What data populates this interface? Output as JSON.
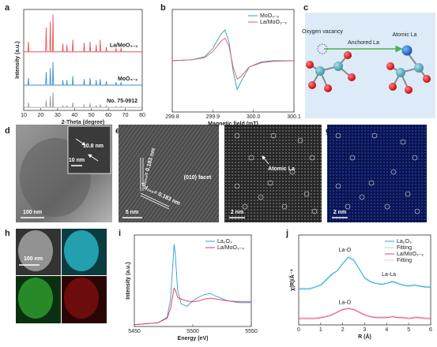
{
  "panel_labels": [
    "a",
    "b",
    "c",
    "d",
    "e",
    "f",
    "g",
    "h",
    "i",
    "j"
  ],
  "chart_data": [
    {
      "type": "line",
      "xlabel": "2-Theta (degree)",
      "ylabel": "Intensity (a.u.)",
      "xlim": [
        10,
        80
      ],
      "xticks": [
        10,
        20,
        30,
        40,
        50,
        60,
        70,
        80
      ],
      "ylim": [
        0,
        100
      ],
      "x": [
        10,
        12.5,
        12.8,
        13.1,
        22.9,
        23.3,
        23.6,
        25.4,
        25.7,
        26.0,
        27.0,
        27.3,
        27.6,
        32.8,
        33.1,
        33.4,
        35.2,
        35.5,
        35.8,
        38.7,
        39.0,
        39.3,
        45.4,
        45.7,
        46.0,
        48.9,
        49.2,
        49.5,
        52.5,
        52.8,
        53.1,
        54.9,
        55.2,
        55.5,
        58.5,
        58.8,
        59.1,
        64.2,
        64.5,
        64.8,
        67.2,
        67.5,
        67.8,
        80
      ],
      "series": [
        {
          "name": "La/MoO₃₋ₓ",
          "color": "#e8545a",
          "values": [
            58,
            58,
            68,
            58,
            58,
            82,
            58,
            58,
            88,
            58,
            58,
            95,
            58,
            58,
            66,
            58,
            58,
            65,
            58,
            58,
            70,
            58,
            58,
            67,
            58,
            58,
            68,
            58,
            58,
            65,
            58,
            58,
            70,
            58,
            58,
            63,
            58,
            58,
            62,
            58,
            58,
            62,
            58,
            58
          ]
        },
        {
          "name": "MoO₃₋ₓ",
          "color": "#3a8fd0",
          "values": [
            25,
            25,
            32,
            25,
            25,
            38,
            25,
            25,
            42,
            25,
            25,
            48,
            25,
            25,
            30,
            25,
            25,
            30,
            25,
            25,
            34,
            25,
            25,
            31,
            25,
            25,
            32,
            25,
            25,
            30,
            25,
            25,
            31,
            25,
            25,
            29,
            25,
            25,
            28,
            25,
            25,
            28,
            25,
            25
          ]
        },
        {
          "name": "No. 75-0912",
          "color": "#a0a0a0",
          "values": [
            3,
            3,
            8,
            3,
            3,
            10,
            3,
            3,
            14,
            3,
            3,
            18,
            3,
            3,
            5,
            3,
            3,
            5,
            3,
            3,
            8,
            3,
            3,
            6,
            3,
            3,
            7,
            3,
            3,
            5,
            3,
            3,
            6,
            3,
            3,
            5,
            3,
            3,
            4,
            3,
            3,
            4,
            3,
            3
          ]
        }
      ]
    },
    {
      "type": "line",
      "xlabel": "Magnetic field (mT)",
      "legend": "upper right",
      "xlim": [
        299.8,
        300.1
      ],
      "xticks": [
        299.8,
        299.9,
        {
          "value": 300,
          "label": "300.0"
        },
        300.1
      ],
      "ylim": [
        -50,
        50
      ],
      "x": [
        299.8,
        299.85,
        299.88,
        299.9,
        299.92,
        299.93,
        299.94,
        299.95,
        299.96,
        299.97,
        299.99,
        300.02,
        300.05,
        300.1
      ],
      "series": [
        {
          "name": "MoO₃₋ₓ",
          "color": "#2a9fb8",
          "values": [
            0,
            1,
            4,
            12,
            26,
            30,
            18,
            -10,
            -28,
            -20,
            -6,
            -1,
            0,
            0
          ]
        },
        {
          "name": "La/MoO₃₋ₓ",
          "color": "#e8545a",
          "values": [
            0,
            1,
            3,
            9,
            19,
            22,
            14,
            -6,
            -18,
            -15,
            -6,
            -2,
            -0.5,
            0
          ]
        }
      ]
    },
    {
      "type": "line",
      "xlabel": "Energy (eV)",
      "ylabel": "Intensity (a.u.)",
      "legend": "upper right",
      "xlim": [
        5450,
        5550
      ],
      "xticks": [
        5450,
        5500,
        5550
      ],
      "ylim": [
        0,
        100
      ],
      "x": [
        5450,
        5470,
        5478,
        5481,
        5483,
        5484,
        5485,
        5487,
        5490,
        5495,
        5500,
        5505,
        5510,
        5515,
        5520,
        5530,
        5540,
        5550
      ],
      "series": [
        {
          "name": "La₂O₃",
          "color": "#2a9fd0",
          "values": [
            2,
            4,
            10,
            30,
            70,
            90,
            80,
            40,
            25,
            22,
            28,
            32,
            35,
            36,
            33,
            28,
            26,
            26
          ]
        },
        {
          "name": "La/MoO₃₋ₓ",
          "color": "#e8304a",
          "values": [
            2,
            4,
            9,
            20,
            35,
            42,
            40,
            32,
            30,
            28,
            27,
            28,
            30,
            31,
            30,
            28,
            27,
            27
          ]
        }
      ]
    },
    {
      "type": "line",
      "xlabel": "R (Å)",
      "ylabel": "χ(R)/Å⁻⁴",
      "legend": "upper right",
      "xlim": [
        0,
        6
      ],
      "xticks": [
        0,
        1,
        2,
        3,
        4,
        5,
        6
      ],
      "ylim": [
        0,
        100
      ],
      "x": [
        0,
        0.25,
        0.5,
        0.75,
        1,
        1.25,
        1.5,
        1.75,
        2,
        2.25,
        2.5,
        2.75,
        3,
        3.25,
        3.5,
        3.75,
        4,
        4.25,
        4.5,
        4.75,
        5,
        5.25,
        5.5,
        5.75,
        6
      ],
      "series": [
        {
          "name": "La₂O₃",
          "color": "#2a9fd0",
          "values": [
            40,
            40,
            40,
            42,
            44,
            50,
            56,
            60,
            68,
            75,
            72,
            62,
            52,
            48,
            46,
            45,
            46,
            48,
            46,
            44,
            43,
            44,
            43,
            42,
            42
          ]
        },
        {
          "name": "Fitting",
          "color": "#33cce0",
          "dash": true,
          "values": [
            41,
            41,
            41,
            43,
            45,
            51,
            57,
            61,
            69,
            76,
            73,
            63,
            53,
            49,
            47,
            46,
            47,
            49,
            47,
            45,
            44,
            45,
            44,
            43,
            43
          ]
        },
        {
          "name": "La/MoO₃₋ₓ",
          "color": "#e8407a",
          "values": [
            7,
            7,
            7,
            7,
            8,
            9,
            11,
            14,
            17,
            18,
            17,
            14,
            11,
            9,
            8,
            8,
            8,
            9,
            8,
            8,
            7,
            8,
            8,
            7,
            7
          ]
        },
        {
          "name": "Fitting",
          "color": "#f08cc8",
          "dash": true,
          "values": [
            8,
            8,
            8,
            8,
            9,
            10,
            12,
            15,
            18,
            19,
            18,
            15,
            12,
            10,
            9,
            9,
            9,
            10,
            9,
            9,
            8,
            9,
            9,
            8,
            8
          ]
        }
      ],
      "annotations": [
        {
          "text": "La-O",
          "x": 2.1,
          "y": 83
        },
        {
          "text": "La-La",
          "x": 4.1,
          "y": 56
        },
        {
          "text": "La-O",
          "x": 2.1,
          "y": 25
        }
      ]
    }
  ],
  "diagram_c": {
    "vacancy": "Oxygen vacancy",
    "arrow": "Anchored La",
    "atom": "Atomic La"
  },
  "images": {
    "d": {
      "size": "10.8 nm",
      "inset_scale": "10 nm",
      "scale": "100 nm"
    },
    "e": {
      "d1": "d₀₀₂= 0.183 nm",
      "d2": "d₂₀₀= 0.183 nm",
      "facet": "(010) facet",
      "scale": "5 nm"
    },
    "f": {
      "annotation": "Atomic La",
      "scale": "2 nm"
    },
    "g": {
      "scale": "2 nm"
    },
    "h": {
      "scale": "100 nm"
    }
  }
}
